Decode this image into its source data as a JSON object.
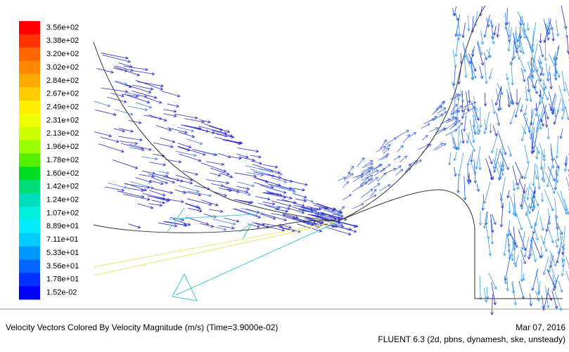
{
  "colorbar": {
    "labels": [
      "3.56e+02",
      "3.38e+02",
      "3.20e+02",
      "3.02e+02",
      "2.84e+02",
      "2.67e+02",
      "2.49e+02",
      "2.31e+02",
      "2.13e+02",
      "1.96e+02",
      "1.78e+02",
      "1.60e+02",
      "1.42e+02",
      "1.24e+02",
      "1.07e+02",
      "8.89e+01",
      "7.11e+01",
      "5.33e+01",
      "3.56e+01",
      "1.78e+01",
      "1.52e-02"
    ]
  },
  "footer": {
    "caption": "Velocity Vectors Colored By Velocity Magnitude (m/s)  (Time=3.9000e-02)",
    "date": "Mar 07, 2016",
    "version": "FLUENT 6.3 (2d, pbns, dynamesh, ske, unsteady)"
  }
}
